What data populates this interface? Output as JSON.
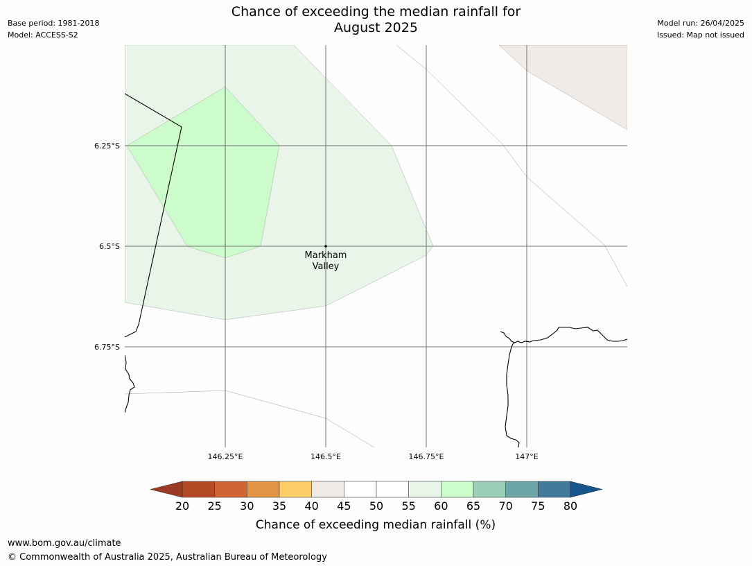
{
  "header": {
    "title_line1": "Chance of exceeding the median rainfall for",
    "title_line2": "August 2025",
    "base_period": "Base period: 1981-2018",
    "model": "Model: ACCESS-S2",
    "model_run": "Model run: 26/04/2025",
    "issued": "Issued: Map not issued"
  },
  "map": {
    "lat_labels": [
      "6.25°S",
      "6.5°S",
      "6.75°S"
    ],
    "lon_labels": [
      "146.25°E",
      "146.5°E",
      "146.75°E",
      "147°E"
    ],
    "place": {
      "name_line1": "Markham",
      "name_line2": "Valley"
    },
    "zones": [
      {
        "category": "40-45",
        "color": "#f0ebe6"
      },
      {
        "category": "55-60",
        "color": "#e9f5e9"
      },
      {
        "category": "60-65",
        "color": "#ccfccc"
      }
    ]
  },
  "colorbar": {
    "title": "Chance of exceeding median rainfall (%)",
    "ticks": [
      "20",
      "25",
      "30",
      "35",
      "40",
      "45",
      "50",
      "55",
      "60",
      "65",
      "70",
      "75",
      "80"
    ],
    "colors": [
      "#b34a25",
      "#cd6432",
      "#e39546",
      "#fdcd6a",
      "#f0ebe6",
      "#ffffff",
      "#ffffff",
      "#e9f5e9",
      "#ccfccc",
      "#9ccfb8",
      "#6ea6a8",
      "#417b9a"
    ],
    "under_color": "#9a3a22",
    "over_color": "#17548d"
  },
  "footer": {
    "url": "www.bom.gov.au/climate",
    "copyright": "© Commonwealth of Australia 2025, Australian Bureau of Meteorology"
  }
}
